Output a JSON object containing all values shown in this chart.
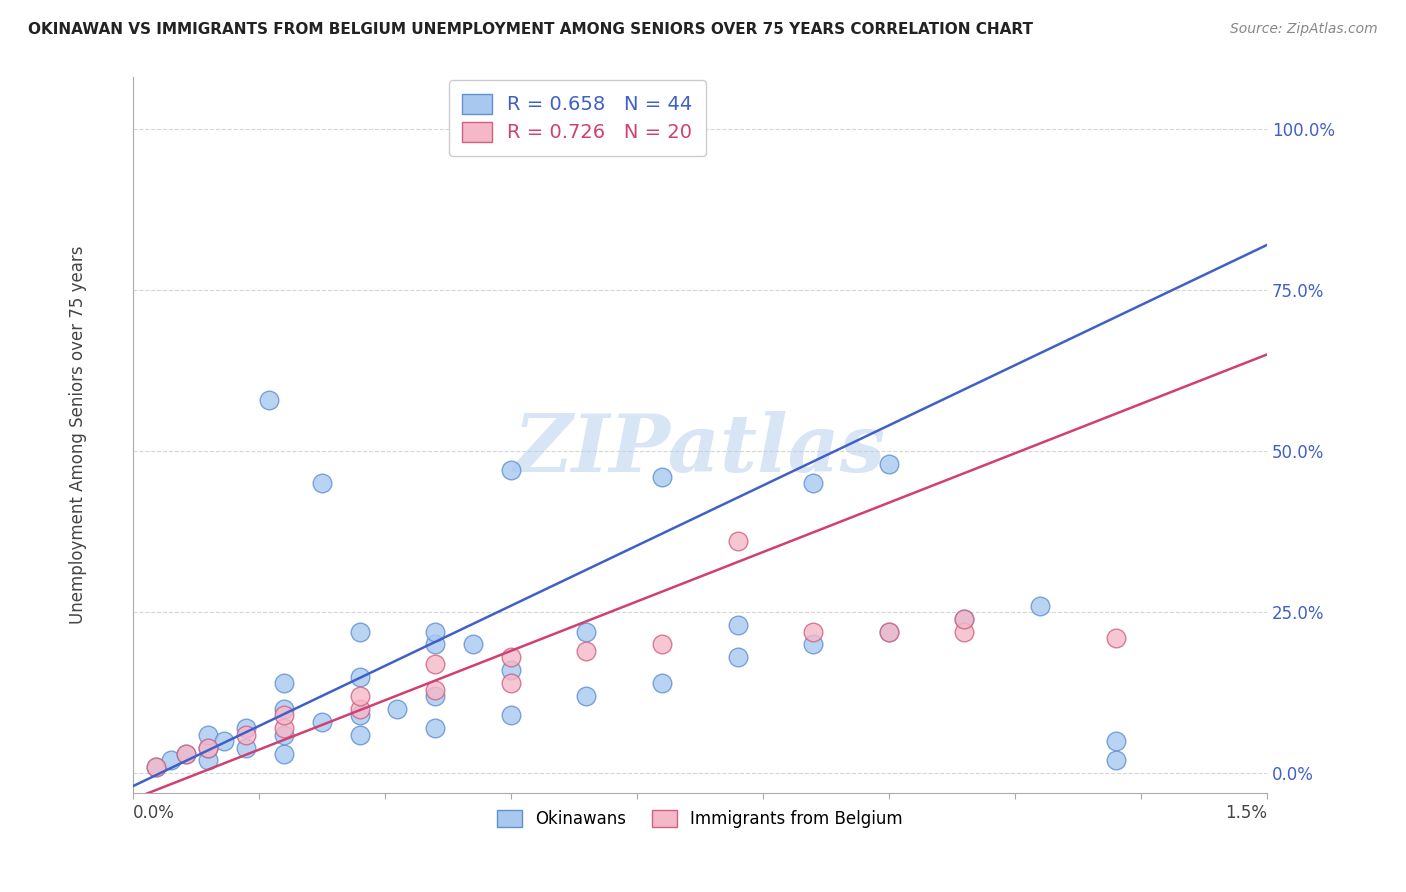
{
  "title": "OKINAWAN VS IMMIGRANTS FROM BELGIUM UNEMPLOYMENT AMONG SENIORS OVER 75 YEARS CORRELATION CHART",
  "source": "Source: ZipAtlas.com",
  "ylabel": "Unemployment Among Seniors over 75 years",
  "xlim": [
    0.0,
    0.015
  ],
  "ylim": [
    -0.03,
    1.08
  ],
  "right_yticks": [
    0.0,
    0.25,
    0.5,
    0.75,
    1.0
  ],
  "right_ytick_labels": [
    "0.0%",
    "25.0%",
    "50.0%",
    "75.0%",
    "100.0%"
  ],
  "okinawan_color": "#A8C8F0",
  "okinawan_edge": "#6090D0",
  "belgium_color": "#F5B8C8",
  "belgium_edge": "#D06080",
  "line_blue": "#4060C8",
  "line_pink": "#D04070",
  "legend_r_blue": "R = 0.658",
  "legend_n_blue": "N = 44",
  "legend_r_pink": "R = 0.726",
  "legend_n_pink": "N = 20",
  "legend_label_blue": "Okinawans",
  "legend_label_pink": "Immigrants from Belgium",
  "watermark": "ZIPatlas",
  "blue_line_x0": 0.0,
  "blue_line_y0": -0.02,
  "blue_line_x1": 0.015,
  "blue_line_y1": 0.82,
  "pink_line_x0": 0.0,
  "pink_line_y0": -0.04,
  "pink_line_x1": 0.015,
  "pink_line_y1": 0.65,
  "okinawan_x": [
    0.0003,
    0.0005,
    0.0007,
    0.001,
    0.001,
    0.001,
    0.0012,
    0.0015,
    0.0015,
    0.002,
    0.002,
    0.002,
    0.002,
    0.0025,
    0.003,
    0.003,
    0.003,
    0.0035,
    0.004,
    0.004,
    0.004,
    0.0045,
    0.005,
    0.005,
    0.006,
    0.006,
    0.007,
    0.007,
    0.008,
    0.008,
    0.009,
    0.009,
    0.01,
    0.01,
    0.011,
    0.012,
    0.0018,
    0.0025,
    0.003,
    0.004,
    0.005,
    0.006,
    0.013,
    0.013
  ],
  "okinawan_y": [
    0.01,
    0.02,
    0.03,
    0.02,
    0.04,
    0.06,
    0.05,
    0.04,
    0.07,
    0.03,
    0.06,
    0.1,
    0.14,
    0.08,
    0.06,
    0.09,
    0.15,
    0.1,
    0.07,
    0.12,
    0.2,
    0.2,
    0.09,
    0.16,
    0.12,
    0.22,
    0.14,
    0.46,
    0.18,
    0.23,
    0.2,
    0.45,
    0.22,
    0.48,
    0.24,
    0.26,
    0.58,
    0.45,
    0.22,
    0.22,
    0.47,
    1.0,
    0.02,
    0.05
  ],
  "belgium_x": [
    0.0003,
    0.0007,
    0.001,
    0.0015,
    0.002,
    0.002,
    0.003,
    0.003,
    0.004,
    0.004,
    0.005,
    0.005,
    0.006,
    0.007,
    0.008,
    0.009,
    0.01,
    0.011,
    0.011,
    0.013
  ],
  "belgium_y": [
    0.01,
    0.03,
    0.04,
    0.06,
    0.07,
    0.09,
    0.1,
    0.12,
    0.13,
    0.17,
    0.14,
    0.18,
    0.19,
    0.2,
    0.36,
    0.22,
    0.22,
    0.22,
    0.24,
    0.21
  ]
}
